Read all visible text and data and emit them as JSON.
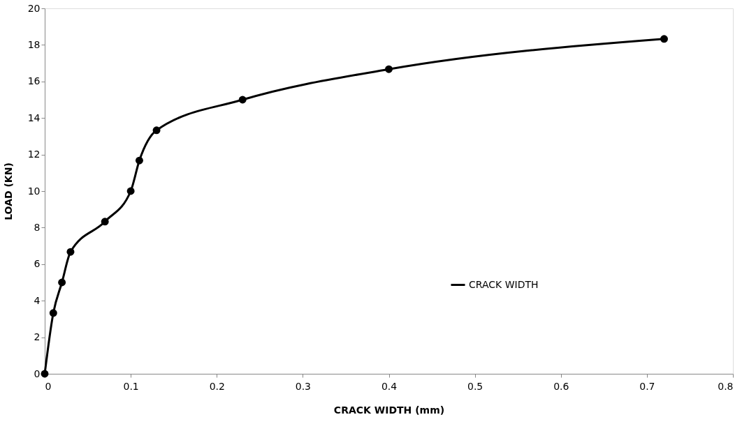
{
  "chart_data": {
    "type": "line",
    "xlabel": "CRACK WIDTH (mm)",
    "ylabel": "LOAD (KN)",
    "x": [
      0,
      0.01,
      0.02,
      0.03,
      0.07,
      0.1,
      0.11,
      0.13,
      0.23,
      0.4,
      0.72
    ],
    "series": [
      {
        "name": "CRACK WIDTH",
        "color": "#000000",
        "values": [
          0,
          3.33,
          5,
          6.67,
          8.33,
          10,
          11.67,
          13.33,
          15,
          16.67,
          18.33
        ]
      }
    ],
    "xlim": [
      0,
      0.8
    ],
    "xticks": [
      0,
      0.1,
      0.2,
      0.3,
      0.4,
      0.5,
      0.6,
      0.7,
      0.8
    ],
    "ylim": [
      0,
      20
    ],
    "yticks": [
      0,
      2,
      4,
      6,
      8,
      10,
      12,
      14,
      16,
      18,
      20
    ],
    "legend": "bottom right",
    "marker": "circle",
    "line_style": "solid"
  }
}
